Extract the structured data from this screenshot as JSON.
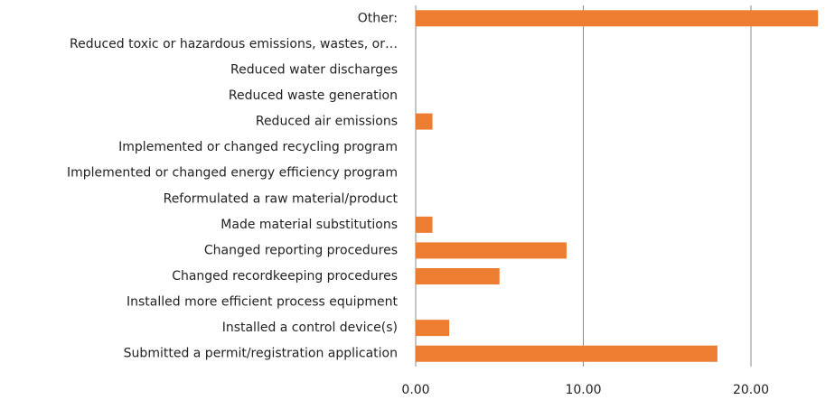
{
  "chart_data": {
    "type": "barh",
    "categories": [
      "Other:",
      "Reduced toxic or hazardous emissions, wastes, or…",
      "Reduced water discharges",
      "Reduced waste generation",
      "Reduced air emissions",
      "Implemented or changed recycling program",
      "Implemented or changed energy efficiency program",
      "Reformulated a raw material/product",
      "Made material substitutions",
      "Changed reporting procedures",
      "Changed recordkeeping procedures",
      "Installed more efficient process equipment",
      "Installed a control device(s)",
      "Submitted a permit/registration application"
    ],
    "values": [
      24,
      0,
      0,
      0,
      1,
      0,
      0,
      0,
      1,
      9,
      5,
      0,
      2,
      18
    ],
    "color": "#ed7d31",
    "xlim": [
      0,
      25
    ],
    "xticks": [
      {
        "value": 0,
        "label": "0.00"
      },
      {
        "value": 10,
        "label": "10.00"
      },
      {
        "value": 20,
        "label": "20.00"
      }
    ],
    "grid": true
  }
}
